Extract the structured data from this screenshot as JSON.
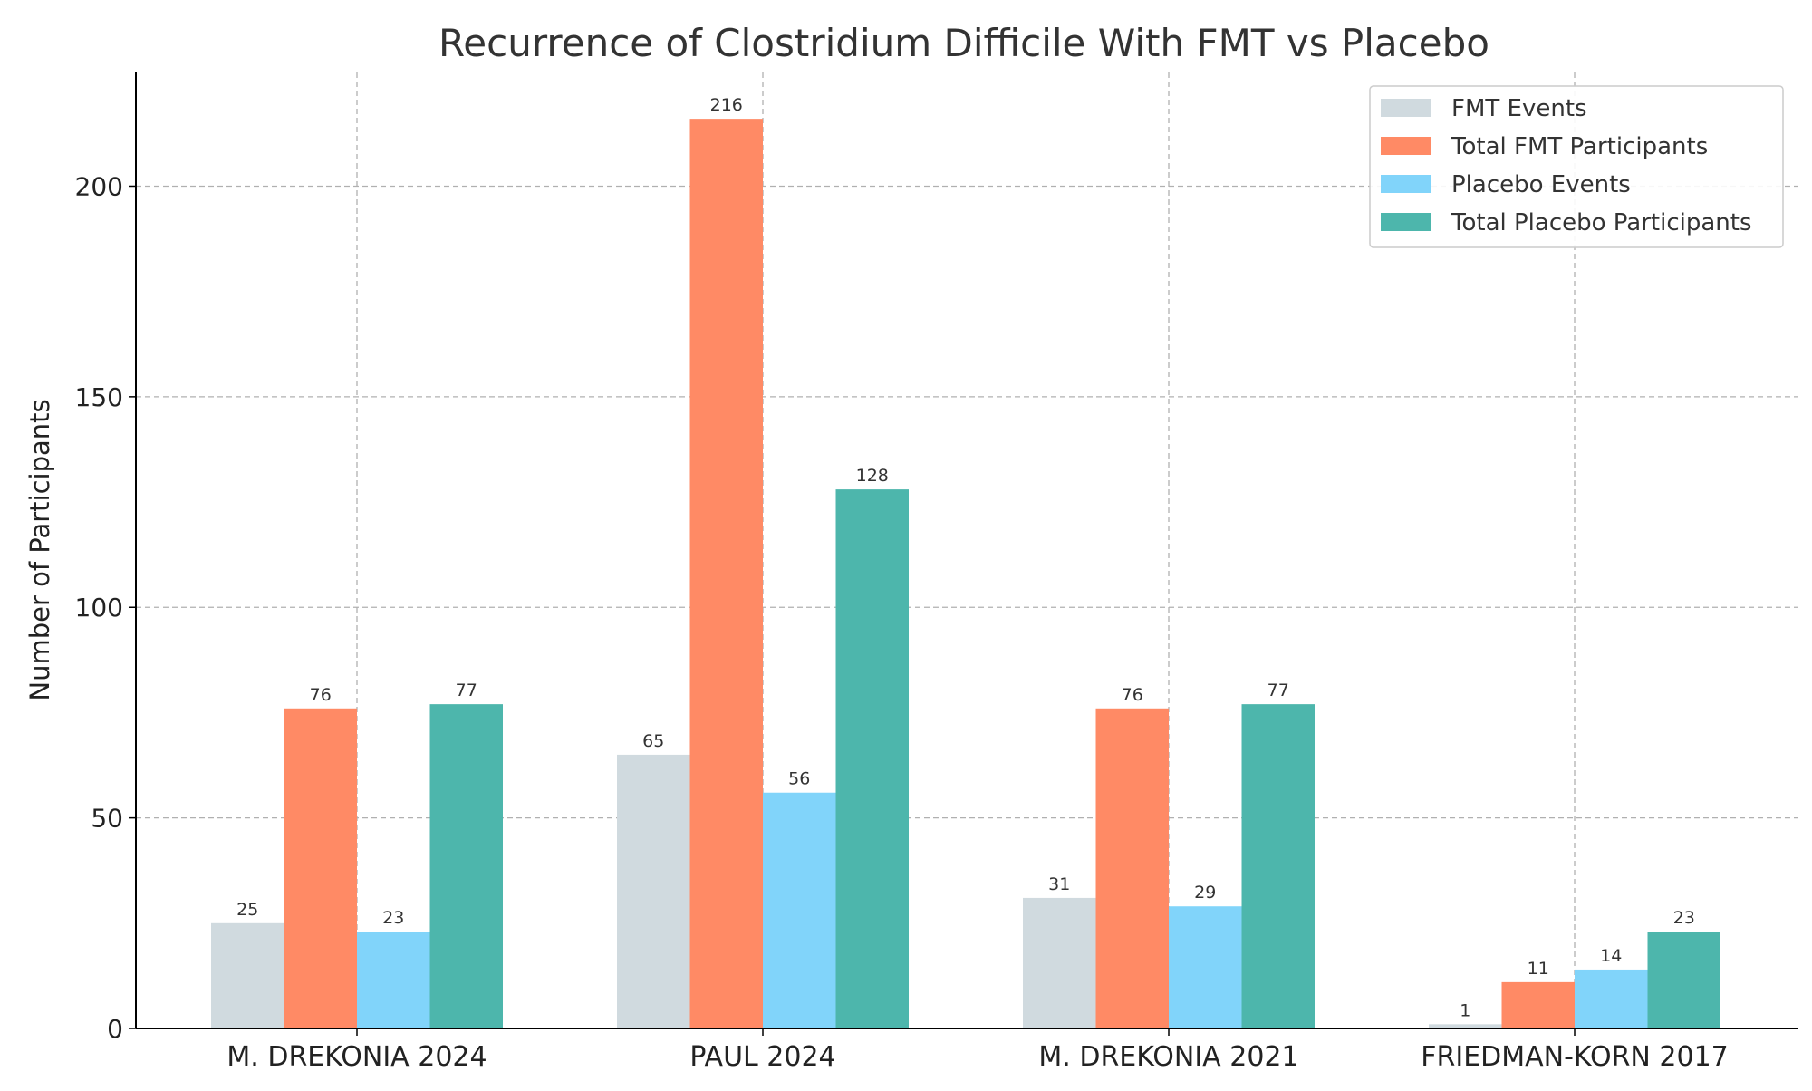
{
  "chart_data": {
    "type": "bar",
    "title": "Recurrence of Clostridium Difficile With FMT vs Placebo",
    "xlabel": "",
    "ylabel": "Number of Participants",
    "ylim": [
      0,
      227
    ],
    "yticks": [
      0,
      50,
      100,
      150,
      200
    ],
    "grid": true,
    "legend_position": "top-right",
    "categories": [
      "M. DREKONIA 2024",
      "PAUL 2024",
      "M. DREKONIA 2021",
      "FRIEDMAN-KORN 2017"
    ],
    "series": [
      {
        "name": "FMT Events",
        "color": "#d0dadf",
        "values": [
          25,
          65,
          31,
          1
        ]
      },
      {
        "name": "Total FMT Participants",
        "color": "#ff8a65",
        "values": [
          76,
          216,
          76,
          11
        ]
      },
      {
        "name": "Placebo Events",
        "color": "#81d4fa",
        "values": [
          23,
          56,
          29,
          14
        ]
      },
      {
        "name": "Total Placebo Participants",
        "color": "#4db6ac",
        "values": [
          77,
          128,
          77,
          23
        ]
      }
    ]
  }
}
